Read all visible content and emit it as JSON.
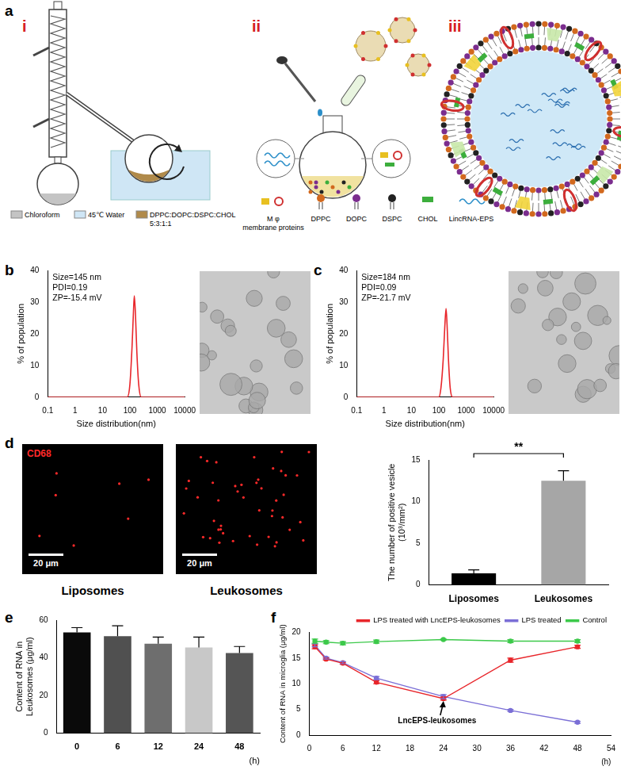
{
  "figure": {
    "panel_labels": [
      "a",
      "b",
      "c",
      "d",
      "e",
      "f"
    ],
    "panel_a": {
      "steps": [
        "i",
        "ii",
        "iii"
      ],
      "legend_i": [
        [
          "Chloroform"
        ],
        [
          "45℃ Water"
        ],
        [
          "DPPC:DOPC:DSPC:CHOL",
          "5:3:1:1"
        ]
      ],
      "legend_ii": [
        [
          "M φ",
          "membrane proteins"
        ],
        [
          "DPPC"
        ],
        [
          "DOPC"
        ],
        [
          "DSPC"
        ],
        [
          "CHOL"
        ],
        [
          "LincRNA-EPS"
        ]
      ]
    },
    "panel_d": {
      "marker_label": "CD68",
      "scale_bar": "20 μm",
      "images": [
        "Liposomes",
        "Leukosomes"
      ]
    }
  },
  "chart_data": [
    {
      "type": "line",
      "annotations": [
        "Size=145 nm",
        "PDI=0.19",
        "ZP=-15.4 mV"
      ],
      "x_label": "Size distribution(nm)",
      "y_label": "% of population",
      "log": "x",
      "x": [
        0.1,
        1,
        10,
        80,
        100,
        120,
        135,
        145,
        160,
        180,
        210,
        260,
        1000,
        10000
      ],
      "values": [
        0,
        0,
        0,
        0,
        4,
        16,
        27,
        32,
        26,
        14,
        4,
        0,
        0,
        0
      ],
      "color": "#e8262b",
      "xlim": [
        0.1,
        10000
      ],
      "xticks": [
        0.1,
        1,
        10,
        100,
        1000,
        10000
      ],
      "ylim": [
        0,
        40
      ],
      "yticks": [
        0,
        10,
        20,
        30,
        40
      ],
      "grid": false
    },
    {
      "type": "line",
      "annotations": [
        "Size=184 nm",
        "PDI=0.09",
        "ZP=-21.7 mV"
      ],
      "x_label": "Size distribution(nm)",
      "y_label": "% of population",
      "log": "x",
      "x": [
        0.1,
        1,
        10,
        100,
        120,
        145,
        165,
        184,
        200,
        225,
        260,
        320,
        1000,
        10000
      ],
      "values": [
        0,
        0,
        0,
        0,
        3,
        12,
        22,
        28,
        23,
        12,
        3,
        0,
        0,
        0
      ],
      "color": "#e8262b",
      "xlim": [
        0.1,
        10000
      ],
      "xticks": [
        0.1,
        1,
        10,
        100,
        1000,
        10000
      ],
      "ylim": [
        0,
        40
      ],
      "yticks": [
        0,
        10,
        20,
        30,
        40
      ],
      "grid": false
    },
    {
      "type": "bar",
      "categories": [
        "Liposomes",
        "Leukosomes"
      ],
      "values": [
        1.4,
        12.5
      ],
      "errors": [
        0.4,
        1.2
      ],
      "colors": [
        "#000000",
        "#a6a6a6"
      ],
      "y_label": [
        "The number of positive vesicle",
        "(10³/mm²)"
      ],
      "annotations": [
        "**"
      ],
      "ylim": [
        0,
        15
      ],
      "yticks": [
        0,
        5,
        10,
        15
      ],
      "grid": false
    },
    {
      "type": "bar",
      "categories": [
        "0",
        "6",
        "12",
        "24",
        "48"
      ],
      "values": [
        53.5,
        51.5,
        47.5,
        45.5,
        42.5
      ],
      "errors": [
        2.5,
        5.5,
        3.5,
        5.5,
        3.5
      ],
      "colors": [
        "#0a0a0a",
        "#505050",
        "#6e6e6e",
        "#c8c8c8",
        "#555555"
      ],
      "x_label": "(h)",
      "y_label": [
        "Content of RNA in",
        "Leukosomes (μg/ml)"
      ],
      "ylim": [
        0,
        60
      ],
      "yticks": [
        0,
        20,
        40,
        60
      ],
      "grid": false
    },
    {
      "type": "line",
      "x_label": "(h)",
      "y_label": "Content of RNA in microglia (μg/ml)",
      "x": [
        1,
        3,
        6,
        12,
        24,
        36,
        48
      ],
      "series": [
        {
          "name": "LPS treated with LncEPS-leukosomes",
          "color": "#e8262b",
          "values": [
            17.2,
            14.8,
            14.0,
            10.3,
            7.1,
            14.6,
            17.2
          ],
          "errors": [
            0.4,
            0.2,
            0.2,
            0.3,
            0.3,
            0.4,
            0.3
          ]
        },
        {
          "name": "LPS treated",
          "color": "#7b6fd6",
          "values": [
            17.5,
            15.0,
            14.1,
            11.1,
            7.5,
            4.8,
            2.5
          ],
          "errors": [
            0.3,
            0.2,
            0.2,
            0.3,
            0.4,
            0.2,
            0.2
          ]
        },
        {
          "name": "Control",
          "color": "#3cc94a",
          "values": [
            18.3,
            18.1,
            17.9,
            18.2,
            18.6,
            18.3,
            18.3
          ],
          "errors": [
            0.4,
            0.3,
            0.3,
            0.3,
            0.1,
            0.3,
            0.3
          ]
        }
      ],
      "annotations": [
        {
          "text": "LncEPS-leukosomes",
          "x": 24,
          "y": 7.1
        }
      ],
      "marker": "circle",
      "legend": "top-right",
      "xlim": [
        0,
        54
      ],
      "xticks": [
        0,
        6,
        12,
        18,
        24,
        30,
        36,
        42,
        48,
        54
      ],
      "ylim": [
        0,
        20
      ],
      "yticks": [
        0,
        5,
        10,
        15,
        20
      ],
      "grid": false
    }
  ]
}
